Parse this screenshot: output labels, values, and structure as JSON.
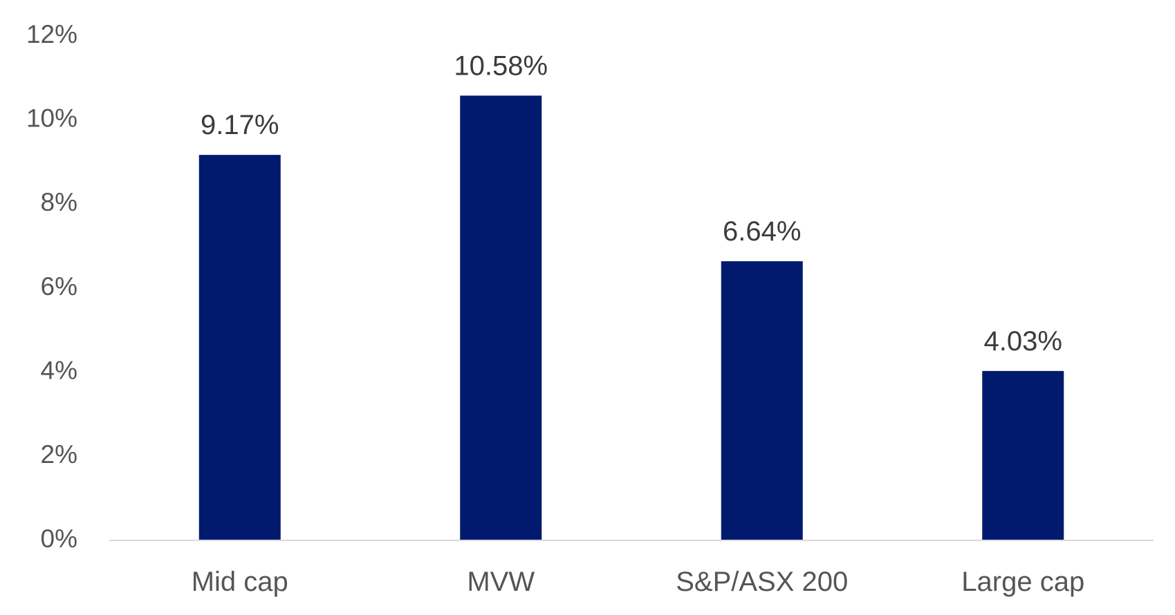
{
  "chart_data": {
    "type": "bar",
    "categories": [
      "Mid cap",
      "MVW",
      "S&P/ASX 200",
      "Large cap"
    ],
    "values": [
      9.17,
      10.58,
      6.64,
      4.03
    ],
    "data_labels": [
      "9.17%",
      "10.58%",
      "6.64%",
      "4.03%"
    ],
    "y_ticks": [
      0,
      2,
      4,
      6,
      8,
      10,
      12
    ],
    "y_tick_labels": [
      "0%",
      "2%",
      "4%",
      "6%",
      "8%",
      "10%",
      "12%"
    ],
    "ylim": [
      0,
      12
    ],
    "grid": false,
    "legend": "none",
    "colors": {
      "bar": "#021a6e",
      "axis_line": "#d9d9d9",
      "tick_text": "#555555",
      "data_label_text": "#3b3b3b"
    }
  }
}
